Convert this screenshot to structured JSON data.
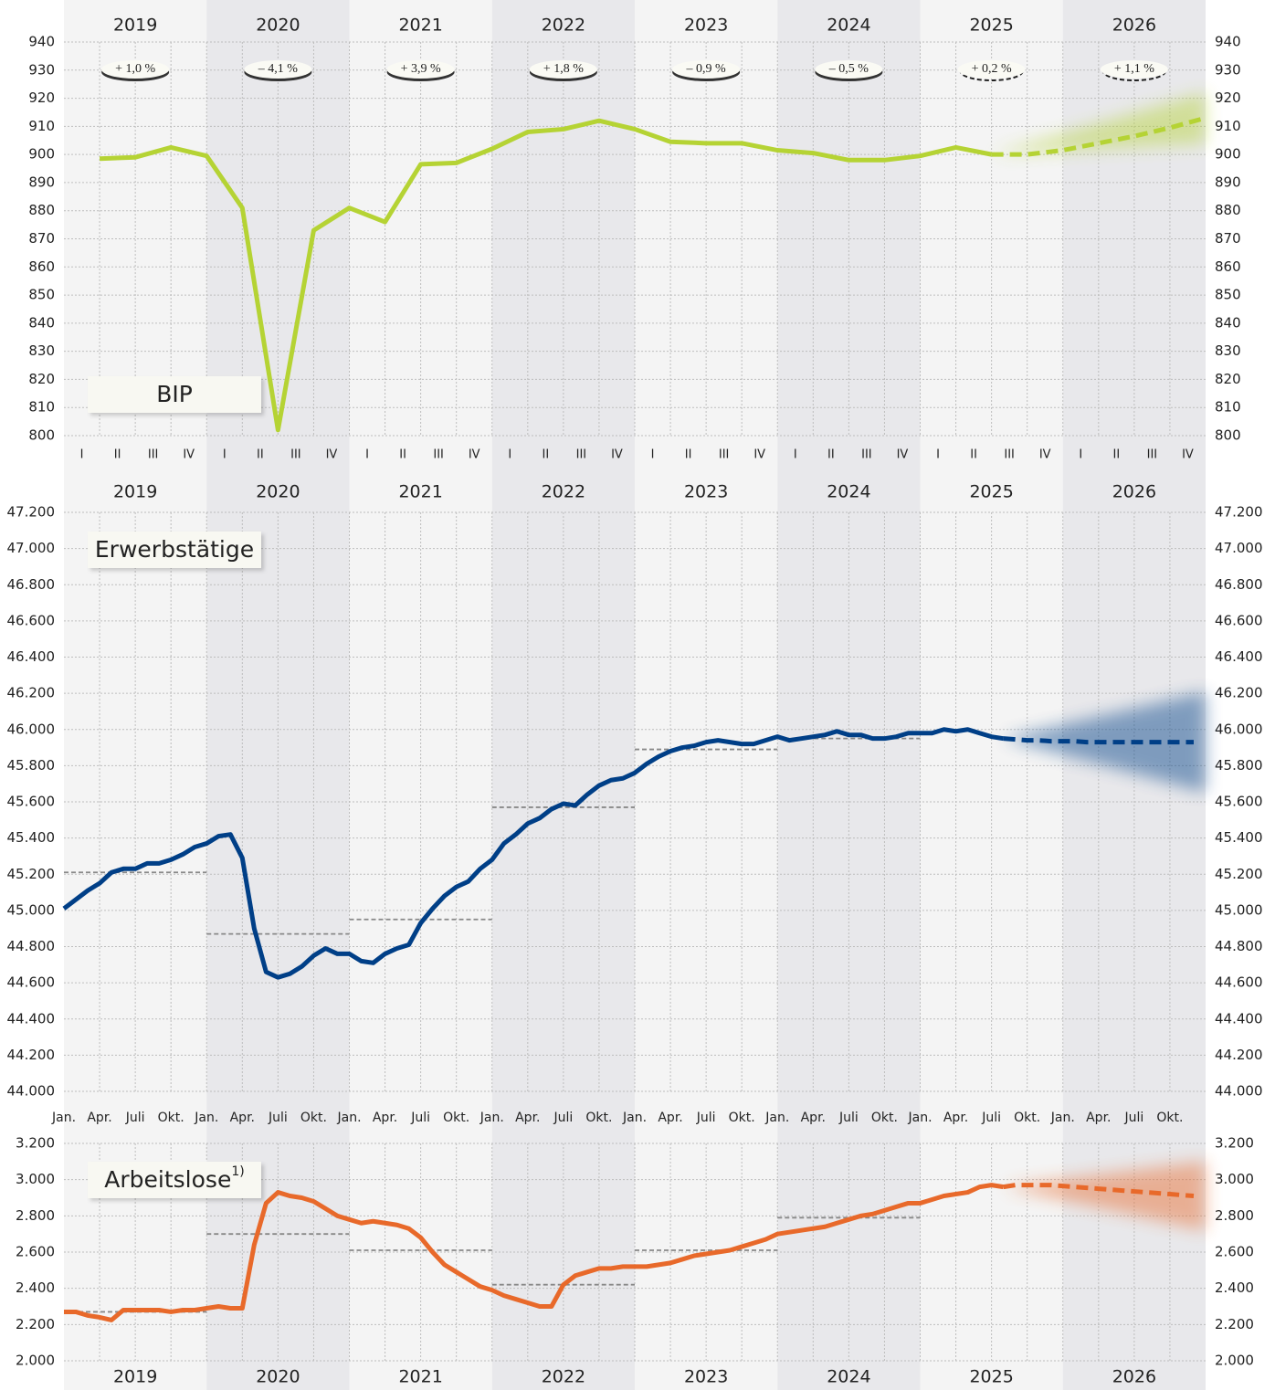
{
  "chart_data": [
    {
      "type": "line",
      "years": [
        "2019",
        "2020",
        "2021",
        "2022",
        "2023",
        "2024",
        "2025",
        "2026"
      ],
      "categories": [
        "I",
        "II",
        "III",
        "IV",
        "I",
        "II",
        "III",
        "IV",
        "I",
        "II",
        "III",
        "IV",
        "I",
        "II",
        "III",
        "IV",
        "I",
        "II",
        "III",
        "IV",
        "I",
        "II",
        "III",
        "IV",
        "I",
        "II",
        "III",
        "IV",
        "I",
        "II",
        "III",
        "IV"
      ],
      "label": "BIP",
      "annotations": [
        "+ 1,0 %",
        "– 4,1 %",
        "+ 3,9 %",
        "+ 1,8 %",
        "– 0,9 %",
        "– 0,5 %",
        "+ 0,2 %",
        "+ 1,1 %"
      ],
      "ylim": [
        800,
        940
      ],
      "yticks": [
        800,
        810,
        820,
        830,
        840,
        850,
        860,
        870,
        880,
        890,
        900,
        910,
        920,
        930,
        940
      ],
      "grid": true,
      "series": [
        {
          "color": "#b5d334",
          "values": [
            898.5,
            899,
            902.5,
            899.5,
            881,
            802,
            873,
            881,
            876,
            896.5,
            897,
            902,
            908,
            909,
            912,
            909,
            904.5,
            904,
            904,
            901.5,
            900.5,
            898,
            898,
            899.5,
            902.5,
            900,
            null,
            null,
            null,
            null,
            null,
            null
          ]
        },
        {
          "color": "#b5d334",
          "line_style": "dashed",
          "values": [
            null,
            null,
            null,
            null,
            null,
            null,
            null,
            null,
            null,
            null,
            null,
            null,
            null,
            null,
            null,
            null,
            null,
            null,
            null,
            null,
            null,
            null,
            null,
            null,
            null,
            900,
            900,
            901.5,
            904,
            906.5,
            909.5,
            913
          ]
        }
      ]
    },
    {
      "type": "line",
      "years": [
        "2019",
        "2020",
        "2021",
        "2022",
        "2023",
        "2024",
        "2025",
        "2026"
      ],
      "categories": [
        "Jan.",
        null,
        null,
        "Apr.",
        null,
        null,
        "Juli",
        null,
        null,
        "Okt.",
        null,
        null,
        "Jan.",
        null,
        null,
        "Apr.",
        null,
        null,
        "Juli",
        null,
        null,
        "Okt.",
        null,
        null,
        "Jan.",
        null,
        null,
        "Apr.",
        null,
        null,
        "Juli",
        null,
        null,
        "Okt.",
        null,
        null,
        "Jan.",
        null,
        null,
        "Apr.",
        null,
        null,
        "Juli",
        null,
        null,
        "Okt.",
        null,
        null,
        "Jan.",
        null,
        null,
        "Apr.",
        null,
        null,
        "Juli",
        null,
        null,
        "Okt.",
        null,
        null,
        "Jan.",
        null,
        null,
        "Apr.",
        null,
        null,
        "Juli",
        null,
        null,
        "Okt.",
        null,
        null,
        "Jan.",
        null,
        null,
        "Apr.",
        null,
        null,
        "Juli",
        null,
        null,
        "Okt.",
        null,
        null,
        "Jan.",
        null,
        null,
        "Apr.",
        null,
        null,
        "Juli",
        null,
        null,
        "Okt.",
        null,
        null
      ],
      "label": "Erwerbstätige",
      "ylim": [
        44000,
        47200
      ],
      "yticks": [
        {
          "value": 44000,
          "label": "44.000"
        },
        {
          "value": 44200,
          "label": "44.200"
        },
        {
          "value": 44400,
          "label": "44.400"
        },
        {
          "value": 44600,
          "label": "44.600"
        },
        {
          "value": 44800,
          "label": "44.800"
        },
        {
          "value": 45000,
          "label": "45.000"
        },
        {
          "value": 45200,
          "label": "45.200"
        },
        {
          "value": 45400,
          "label": "45.400"
        },
        {
          "value": 45600,
          "label": "45.600"
        },
        {
          "value": 45800,
          "label": "45.800"
        },
        {
          "value": 46000,
          "label": "46.000"
        },
        {
          "value": 46200,
          "label": "46.200"
        },
        {
          "value": 46400,
          "label": "46.400"
        },
        {
          "value": 46600,
          "label": "46.600"
        },
        {
          "value": 46800,
          "label": "46.800"
        },
        {
          "value": 47000,
          "label": "47.000"
        },
        {
          "value": 47200,
          "label": "47.200"
        }
      ],
      "grid": true,
      "annual_averages": [
        45210,
        44870,
        44950,
        45570,
        45890,
        45950,
        null,
        null
      ],
      "series": [
        {
          "color": "#003f87",
          "values": [
            45010,
            45060,
            45110,
            45150,
            45210,
            45230,
            45230,
            45260,
            45260,
            45280,
            45310,
            45350,
            45370,
            45410,
            45420,
            45290,
            44900,
            44660,
            44630,
            44650,
            44690,
            44750,
            44790,
            44760,
            44760,
            44720,
            44710,
            44760,
            44790,
            44810,
            44930,
            45010,
            45080,
            45130,
            45160,
            45230,
            45280,
            45370,
            45420,
            45480,
            45510,
            45560,
            45590,
            45580,
            45640,
            45690,
            45720,
            45730,
            45760,
            45810,
            45850,
            45880,
            45900,
            45910,
            45930,
            45940,
            45930,
            45920,
            45920,
            45940,
            45960,
            45940,
            45950,
            45960,
            45970,
            45990,
            45970,
            45970,
            45950,
            45950,
            45960,
            45980,
            45980,
            45980,
            46000,
            45990,
            46000,
            45980,
            45960,
            45950,
            null,
            null,
            null,
            null,
            null,
            null,
            null,
            null,
            null,
            null,
            null,
            null,
            null,
            null,
            null,
            null
          ]
        },
        {
          "color": "#003f87",
          "line_style": "dashed",
          "values": [
            null,
            null,
            null,
            null,
            null,
            null,
            null,
            null,
            null,
            null,
            null,
            null,
            null,
            null,
            null,
            null,
            null,
            null,
            null,
            null,
            null,
            null,
            null,
            null,
            null,
            null,
            null,
            null,
            null,
            null,
            null,
            null,
            null,
            null,
            null,
            null,
            null,
            null,
            null,
            null,
            null,
            null,
            null,
            null,
            null,
            null,
            null,
            null,
            null,
            null,
            null,
            null,
            null,
            null,
            null,
            null,
            null,
            null,
            null,
            null,
            null,
            null,
            null,
            null,
            null,
            null,
            null,
            null,
            null,
            null,
            null,
            null,
            null,
            null,
            null,
            null,
            null,
            null,
            null,
            45950,
            45945,
            45940,
            45940,
            45935,
            45935,
            45935,
            45930,
            45930,
            45930,
            45930,
            45930,
            45930,
            45930,
            45930,
            45930,
            45930
          ]
        }
      ]
    },
    {
      "type": "line",
      "years": [
        "2019",
        "2020",
        "2021",
        "2022",
        "2023",
        "2024",
        "2025",
        "2026"
      ],
      "label": "Arbeitslose",
      "label_note": "1)",
      "ylim": [
        2000,
        3200
      ],
      "yticks": [
        {
          "value": 2000,
          "label": "2.000"
        },
        {
          "value": 2200,
          "label": "2.200"
        },
        {
          "value": 2400,
          "label": "2.400"
        },
        {
          "value": 2600,
          "label": "2.600"
        },
        {
          "value": 2800,
          "label": "2.800"
        },
        {
          "value": 3000,
          "label": "3.000"
        },
        {
          "value": 3200,
          "label": "3.200"
        }
      ],
      "grid": true,
      "annual_averages": [
        2270,
        2700,
        2610,
        2420,
        2610,
        2790,
        null,
        null
      ],
      "series": [
        {
          "color": "#e8692a",
          "values": [
            2270,
            2270,
            2250,
            2240,
            2225,
            2280,
            2280,
            2280,
            2280,
            2270,
            2280,
            2280,
            2290,
            2300,
            2290,
            2290,
            2640,
            2870,
            2930,
            2910,
            2900,
            2880,
            2840,
            2800,
            2780,
            2760,
            2770,
            2760,
            2750,
            2730,
            2680,
            2600,
            2530,
            2490,
            2450,
            2410,
            2390,
            2360,
            2340,
            2320,
            2300,
            2300,
            2420,
            2470,
            2490,
            2510,
            2510,
            2520,
            2520,
            2520,
            2530,
            2540,
            2560,
            2580,
            2590,
            2600,
            2610,
            2630,
            2650,
            2670,
            2700,
            2710,
            2720,
            2730,
            2740,
            2760,
            2780,
            2800,
            2810,
            2830,
            2850,
            2870,
            2870,
            2890,
            2910,
            2920,
            2930,
            2960,
            2970,
            2960,
            null,
            null,
            null,
            null,
            null,
            null,
            null,
            null,
            null,
            null,
            null,
            null,
            null,
            null,
            null,
            null
          ]
        },
        {
          "color": "#e8692a",
          "line_style": "dashed",
          "values": [
            null,
            null,
            null,
            null,
            null,
            null,
            null,
            null,
            null,
            null,
            null,
            null,
            null,
            null,
            null,
            null,
            null,
            null,
            null,
            null,
            null,
            null,
            null,
            null,
            null,
            null,
            null,
            null,
            null,
            null,
            null,
            null,
            null,
            null,
            null,
            null,
            null,
            null,
            null,
            null,
            null,
            null,
            null,
            null,
            null,
            null,
            null,
            null,
            null,
            null,
            null,
            null,
            null,
            null,
            null,
            null,
            null,
            null,
            null,
            null,
            null,
            null,
            null,
            null,
            null,
            null,
            null,
            null,
            null,
            null,
            null,
            null,
            null,
            null,
            null,
            null,
            null,
            null,
            null,
            2960,
            2970,
            2970,
            2970,
            2970,
            2965,
            2960,
            2955,
            2950,
            2945,
            2940,
            2935,
            2930,
            2925,
            2920,
            2915,
            2910
          ]
        }
      ]
    }
  ]
}
